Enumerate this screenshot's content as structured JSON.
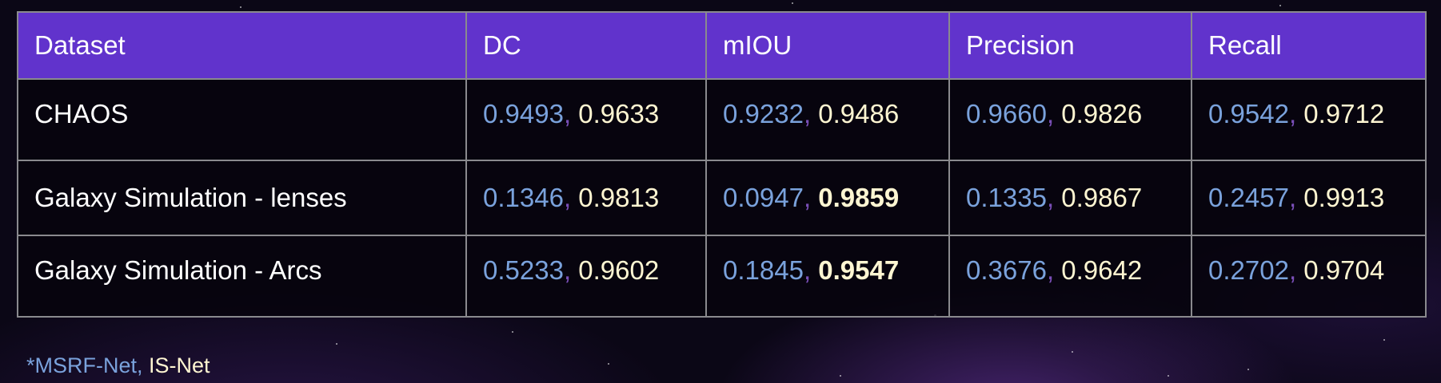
{
  "table": {
    "headers": [
      "Dataset",
      "DC",
      "mIOU",
      "Precision",
      "Recall"
    ],
    "rows": [
      {
        "dataset": "CHAOS",
        "dc": {
          "msrf": "0.9493",
          "isnet": "0.9633"
        },
        "miou": {
          "msrf": "0.9232",
          "isnet": "0.9486"
        },
        "precision": {
          "msrf": "0.9660",
          "isnet": "0.9826"
        },
        "recall": {
          "msrf": "0.9542",
          "isnet": "0.9712"
        }
      },
      {
        "dataset": "Galaxy Simulation - lenses",
        "dc": {
          "msrf": "0.1346",
          "isnet": "0.9813"
        },
        "miou": {
          "msrf": "0.0947",
          "isnet": "0.9859"
        },
        "precision": {
          "msrf": "0.1335",
          "isnet": "0.9867"
        },
        "recall": {
          "msrf": "0.2457",
          "isnet": "0.9913"
        }
      },
      {
        "dataset": "Galaxy Simulation - Arcs",
        "dc": {
          "msrf": "0.5233",
          "isnet": "0.9602"
        },
        "miou": {
          "msrf": "0.1845",
          "isnet": "0.9547"
        },
        "precision": {
          "msrf": "0.3676",
          "isnet": "0.9642"
        },
        "recall": {
          "msrf": "0.2702",
          "isnet": "0.9704"
        }
      }
    ],
    "separator": ","
  },
  "footnote": {
    "msrf_label": "*MSRF-Net,",
    "isnet_label": "IS-Net"
  },
  "colors": {
    "header_bg": "#6133cc",
    "msrf": "#7aa2dc",
    "isnet": "#fff6d2",
    "separator": "#7a4fb8",
    "background": "#0b0716"
  }
}
